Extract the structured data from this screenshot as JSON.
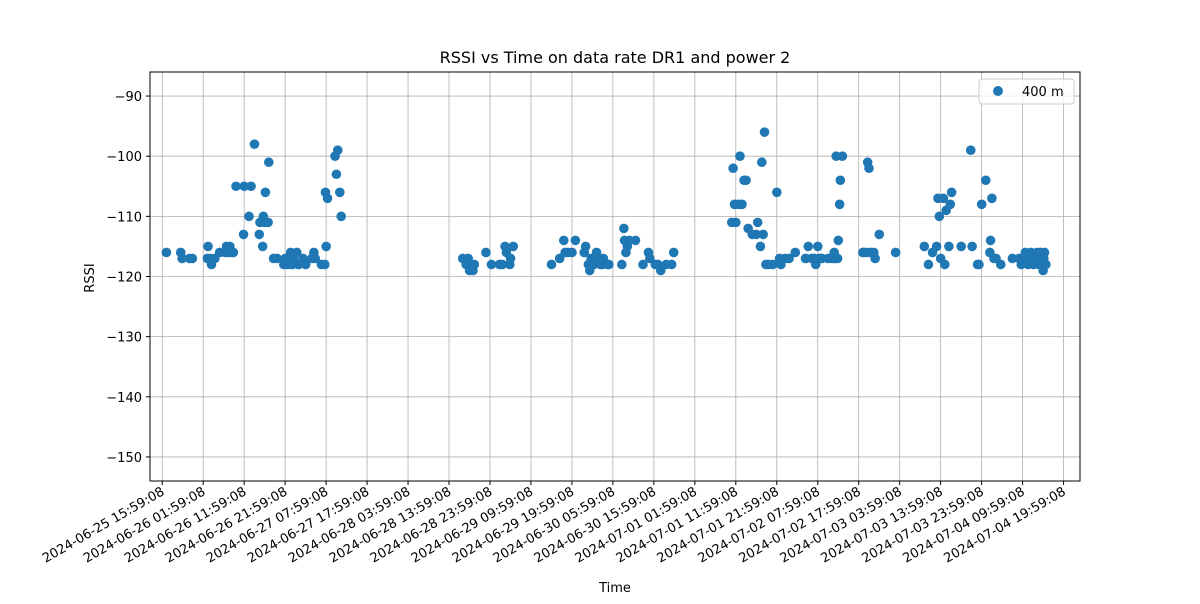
{
  "chart_data": {
    "type": "scatter",
    "title": "RSSI vs Time on data rate DR1 and power 2",
    "xlabel": "Time",
    "ylabel": "RSSI",
    "color": "#1f77b4",
    "grid": true,
    "legend_placement": "top-right",
    "ylim": [
      -154,
      -86
    ],
    "xlim": [
      "2024-06-25 13:00:00",
      "2024-07-05 00:00:00"
    ],
    "y_ticks": [
      -90,
      -100,
      -110,
      -120,
      -130,
      -140,
      -150
    ],
    "y_tick_labels": [
      "−90",
      "−100",
      "−110",
      "−120",
      "−130",
      "−140",
      "−150"
    ],
    "x_ticks": [
      "2024-06-25 15:59:08",
      "2024-06-26 01:59:08",
      "2024-06-26 11:59:08",
      "2024-06-26 21:59:08",
      "2024-06-27 07:59:08",
      "2024-06-27 17:59:08",
      "2024-06-28 03:59:08",
      "2024-06-28 13:59:08",
      "2024-06-28 23:59:08",
      "2024-06-29 09:59:08",
      "2024-06-29 19:59:08",
      "2024-06-30 05:59:08",
      "2024-06-30 15:59:08",
      "2024-07-01 01:59:08",
      "2024-07-01 11:59:08",
      "2024-07-01 21:59:08",
      "2024-07-02 07:59:08",
      "2024-07-02 17:59:08",
      "2024-07-03 03:59:08",
      "2024-07-03 13:59:08",
      "2024-07-03 23:59:08",
      "2024-07-04 09:59:08",
      "2024-07-04 19:59:08"
    ],
    "series": [
      {
        "name": "400 m",
        "points": [
          [
            "2024-06-25 17:00",
            -116
          ],
          [
            "2024-06-25 20:30",
            -116
          ],
          [
            "2024-06-25 20:50",
            -117
          ],
          [
            "2024-06-25 22:40",
            -117
          ],
          [
            "2024-06-25 23:20",
            -117
          ],
          [
            "2024-06-26 03:00",
            -117
          ],
          [
            "2024-06-26 03:10",
            -115
          ],
          [
            "2024-06-26 03:40",
            -117
          ],
          [
            "2024-06-26 04:00",
            -118
          ],
          [
            "2024-06-26 04:50",
            -117
          ],
          [
            "2024-06-26 06:00",
            -116
          ],
          [
            "2024-06-26 07:20",
            -116
          ],
          [
            "2024-06-26 07:40",
            -115
          ],
          [
            "2024-06-26 08:00",
            -116
          ],
          [
            "2024-06-26 08:30",
            -115
          ],
          [
            "2024-06-26 09:00",
            -116
          ],
          [
            "2024-06-26 09:20",
            -116
          ],
          [
            "2024-06-26 10:00",
            -105
          ],
          [
            "2024-06-26 11:50",
            -113
          ],
          [
            "2024-06-26 12:00",
            -105
          ],
          [
            "2024-06-26 13:10",
            -110
          ],
          [
            "2024-06-26 13:40",
            -105
          ],
          [
            "2024-06-26 14:30",
            -98
          ],
          [
            "2024-06-26 15:40",
            -113
          ],
          [
            "2024-06-26 15:50",
            -111
          ],
          [
            "2024-06-26 16:30",
            -115
          ],
          [
            "2024-06-26 16:40",
            -110
          ],
          [
            "2024-06-26 17:00",
            -111
          ],
          [
            "2024-06-26 17:10",
            -106
          ],
          [
            "2024-06-26 17:50",
            -111
          ],
          [
            "2024-06-26 18:00",
            -101
          ],
          [
            "2024-06-26 19:10",
            -117
          ],
          [
            "2024-06-26 20:00",
            -117
          ],
          [
            "2024-06-26 21:40",
            -118
          ],
          [
            "2024-06-26 22:00",
            -117
          ],
          [
            "2024-06-26 22:40",
            -118
          ],
          [
            "2024-06-26 23:00",
            -117
          ],
          [
            "2024-06-26 23:20",
            -116
          ],
          [
            "2024-06-26 23:40",
            -118
          ],
          [
            "2024-06-27 00:00",
            -117
          ],
          [
            "2024-06-27 00:50",
            -116
          ],
          [
            "2024-06-27 01:10",
            -118
          ],
          [
            "2024-06-27 01:20",
            -118
          ],
          [
            "2024-06-27 02:20",
            -117
          ],
          [
            "2024-06-27 03:00",
            -118
          ],
          [
            "2024-06-27 04:30",
            -117
          ],
          [
            "2024-06-27 05:00",
            -116
          ],
          [
            "2024-06-27 05:20",
            -117
          ],
          [
            "2024-06-27 06:50",
            -118
          ],
          [
            "2024-06-27 07:40",
            -118
          ],
          [
            "2024-06-27 07:50",
            -106
          ],
          [
            "2024-06-27 08:00",
            -115
          ],
          [
            "2024-06-27 08:20",
            -107
          ],
          [
            "2024-06-27 10:10",
            -100
          ],
          [
            "2024-06-27 10:30",
            -103
          ],
          [
            "2024-06-27 10:50",
            -99
          ],
          [
            "2024-06-27 11:20",
            -106
          ],
          [
            "2024-06-27 11:40",
            -110
          ],
          [
            "2024-06-28 17:20",
            -117
          ],
          [
            "2024-06-28 18:10",
            -118
          ],
          [
            "2024-06-28 18:40",
            -117
          ],
          [
            "2024-06-28 19:00",
            -119
          ],
          [
            "2024-06-28 19:20",
            -118
          ],
          [
            "2024-06-28 19:50",
            -119
          ],
          [
            "2024-06-28 20:10",
            -118
          ],
          [
            "2024-06-28 23:00",
            -116
          ],
          [
            "2024-06-29 00:20",
            -118
          ],
          [
            "2024-06-29 02:20",
            -118
          ],
          [
            "2024-06-29 03:00",
            -118
          ],
          [
            "2024-06-29 03:40",
            -115
          ],
          [
            "2024-06-29 04:00",
            -116
          ],
          [
            "2024-06-29 04:50",
            -118
          ],
          [
            "2024-06-29 05:00",
            -117
          ],
          [
            "2024-06-29 05:40",
            -115
          ],
          [
            "2024-06-29 15:00",
            -118
          ],
          [
            "2024-06-29 17:00",
            -117
          ],
          [
            "2024-06-29 18:00",
            -114
          ],
          [
            "2024-06-29 18:20",
            -116
          ],
          [
            "2024-06-29 19:00",
            -116
          ],
          [
            "2024-06-29 20:00",
            -116
          ],
          [
            "2024-06-29 20:50",
            -114
          ],
          [
            "2024-06-29 23:00",
            -116
          ],
          [
            "2024-06-29 23:20",
            -115
          ],
          [
            "2024-06-30 00:00",
            -118
          ],
          [
            "2024-06-30 00:20",
            -119
          ],
          [
            "2024-06-30 00:40",
            -117
          ],
          [
            "2024-06-30 01:20",
            -118
          ],
          [
            "2024-06-30 01:40",
            -117
          ],
          [
            "2024-06-30 02:00",
            -116
          ],
          [
            "2024-06-30 03:00",
            -118
          ],
          [
            "2024-06-30 03:20",
            -118
          ],
          [
            "2024-06-30 03:40",
            -117
          ],
          [
            "2024-06-30 04:40",
            -118
          ],
          [
            "2024-06-30 05:00",
            -118
          ],
          [
            "2024-06-30 08:10",
            -118
          ],
          [
            "2024-06-30 08:40",
            -112
          ],
          [
            "2024-06-30 08:50",
            -114
          ],
          [
            "2024-06-30 09:10",
            -116
          ],
          [
            "2024-06-30 09:30",
            -115
          ],
          [
            "2024-06-30 10:00",
            -114
          ],
          [
            "2024-06-30 11:30",
            -114
          ],
          [
            "2024-06-30 13:20",
            -118
          ],
          [
            "2024-06-30 14:40",
            -116
          ],
          [
            "2024-06-30 15:00",
            -117
          ],
          [
            "2024-06-30 16:20",
            -118
          ],
          [
            "2024-06-30 17:00",
            -118
          ],
          [
            "2024-06-30 17:40",
            -119
          ],
          [
            "2024-06-30 19:00",
            -118
          ],
          [
            "2024-06-30 20:20",
            -118
          ],
          [
            "2024-06-30 20:50",
            -116
          ],
          [
            "2024-07-01 11:00",
            -111
          ],
          [
            "2024-07-01 11:20",
            -102
          ],
          [
            "2024-07-01 11:40",
            -108
          ],
          [
            "2024-07-01 12:00",
            -111
          ],
          [
            "2024-07-01 12:40",
            -108
          ],
          [
            "2024-07-01 13:00",
            -100
          ],
          [
            "2024-07-01 13:30",
            -108
          ],
          [
            "2024-07-01 14:00",
            -104
          ],
          [
            "2024-07-01 14:30",
            -104
          ],
          [
            "2024-07-01 15:00",
            -112
          ],
          [
            "2024-07-01 16:00",
            -113
          ],
          [
            "2024-07-01 17:00",
            -113
          ],
          [
            "2024-07-01 17:20",
            -111
          ],
          [
            "2024-07-01 18:00",
            -115
          ],
          [
            "2024-07-01 18:20",
            -101
          ],
          [
            "2024-07-01 18:40",
            -113
          ],
          [
            "2024-07-01 19:00",
            -96
          ],
          [
            "2024-07-01 19:20",
            -118
          ],
          [
            "2024-07-01 20:00",
            -118
          ],
          [
            "2024-07-01 21:00",
            -118
          ],
          [
            "2024-07-01 22:00",
            -106
          ],
          [
            "2024-07-01 22:40",
            -117
          ],
          [
            "2024-07-01 23:00",
            -118
          ],
          [
            "2024-07-02 00:00",
            -117
          ],
          [
            "2024-07-02 01:00",
            -117
          ],
          [
            "2024-07-02 02:30",
            -116
          ],
          [
            "2024-07-02 05:00",
            -117
          ],
          [
            "2024-07-02 05:40",
            -115
          ],
          [
            "2024-07-02 06:30",
            -117
          ],
          [
            "2024-07-02 07:00",
            -117
          ],
          [
            "2024-07-02 07:10",
            -117
          ],
          [
            "2024-07-02 07:30",
            -118
          ],
          [
            "2024-07-02 08:00",
            -115
          ],
          [
            "2024-07-02 08:20",
            -117
          ],
          [
            "2024-07-02 08:40",
            -117
          ],
          [
            "2024-07-02 09:00",
            -117
          ],
          [
            "2024-07-02 10:30",
            -117
          ],
          [
            "2024-07-02 11:30",
            -117
          ],
          [
            "2024-07-02 12:00",
            -116
          ],
          [
            "2024-07-02 12:10",
            -117
          ],
          [
            "2024-07-02 12:30",
            -100
          ],
          [
            "2024-07-02 12:50",
            -117
          ],
          [
            "2024-07-02 13:00",
            -114
          ],
          [
            "2024-07-02 13:20",
            -108
          ],
          [
            "2024-07-02 13:30",
            -104
          ],
          [
            "2024-07-02 14:00",
            -100
          ],
          [
            "2024-07-02 19:00",
            -116
          ],
          [
            "2024-07-02 19:20",
            -116
          ],
          [
            "2024-07-02 20:00",
            -116
          ],
          [
            "2024-07-02 20:10",
            -101
          ],
          [
            "2024-07-02 20:30",
            -102
          ],
          [
            "2024-07-02 21:00",
            -116
          ],
          [
            "2024-07-02 21:40",
            -116
          ],
          [
            "2024-07-02 22:00",
            -117
          ],
          [
            "2024-07-02 23:00",
            -113
          ],
          [
            "2024-07-03 03:00",
            -116
          ],
          [
            "2024-07-03 10:00",
            -115
          ],
          [
            "2024-07-03 11:00",
            -118
          ],
          [
            "2024-07-03 12:00",
            -116
          ],
          [
            "2024-07-03 13:00",
            -115
          ],
          [
            "2024-07-03 13:20",
            -107
          ],
          [
            "2024-07-03 13:40",
            -110
          ],
          [
            "2024-07-03 14:00",
            -117
          ],
          [
            "2024-07-03 14:40",
            -107
          ],
          [
            "2024-07-03 15:00",
            -118
          ],
          [
            "2024-07-03 15:20",
            -109
          ],
          [
            "2024-07-03 16:00",
            -115
          ],
          [
            "2024-07-03 16:20",
            -108
          ],
          [
            "2024-07-03 16:40",
            -106
          ],
          [
            "2024-07-03 19:00",
            -115
          ],
          [
            "2024-07-03 21:20",
            -99
          ],
          [
            "2024-07-03 21:40",
            -115
          ],
          [
            "2024-07-03 23:00",
            -118
          ],
          [
            "2024-07-03 23:20",
            -118
          ],
          [
            "2024-07-04 00:00",
            -108
          ],
          [
            "2024-07-04 01:00",
            -104
          ],
          [
            "2024-07-04 02:00",
            -116
          ],
          [
            "2024-07-04 02:10",
            -114
          ],
          [
            "2024-07-04 02:30",
            -107
          ],
          [
            "2024-07-04 03:00",
            -117
          ],
          [
            "2024-07-04 03:30",
            -117
          ],
          [
            "2024-07-04 04:40",
            -118
          ],
          [
            "2024-07-04 07:30",
            -117
          ],
          [
            "2024-07-04 09:10",
            -117
          ],
          [
            "2024-07-04 09:40",
            -118
          ],
          [
            "2024-07-04 10:40",
            -116
          ],
          [
            "2024-07-04 11:00",
            -117
          ],
          [
            "2024-07-04 11:20",
            -118
          ],
          [
            "2024-07-04 12:00",
            -116
          ],
          [
            "2024-07-04 12:20",
            -117
          ],
          [
            "2024-07-04 12:40",
            -118
          ],
          [
            "2024-07-04 13:10",
            -117
          ],
          [
            "2024-07-04 13:30",
            -116
          ],
          [
            "2024-07-04 14:00",
            -118
          ],
          [
            "2024-07-04 14:20",
            -116
          ],
          [
            "2024-07-04 14:30",
            -117
          ],
          [
            "2024-07-04 14:50",
            -118
          ],
          [
            "2024-07-04 15:00",
            -119
          ],
          [
            "2024-07-04 15:10",
            -117
          ],
          [
            "2024-07-04 15:20",
            -116
          ],
          [
            "2024-07-04 15:40",
            -118
          ]
        ]
      }
    ]
  }
}
